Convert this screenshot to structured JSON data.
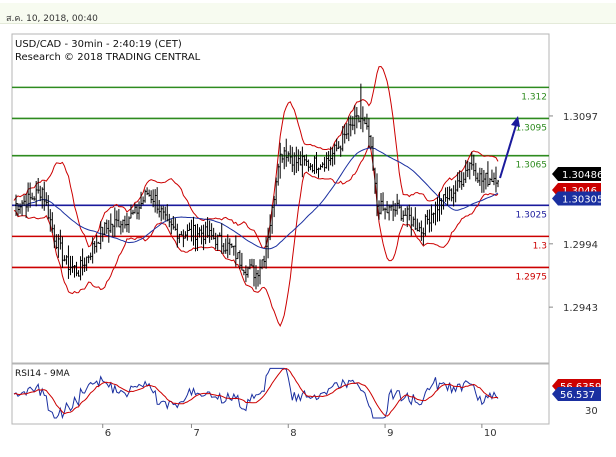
{
  "header": {
    "timestamp": "ส.ค. 10, 2018, 00:40"
  },
  "chart_data": {
    "type": "candlestick",
    "title": "USD/CAD - 30min - 2:40:19 (CET)",
    "subtitle": "Research © 2018 TRADING CENTRAL",
    "x_tick_labels": [
      "6",
      "7",
      "8",
      "9",
      "10"
    ],
    "y_tick_labels": [
      "1.3097",
      "1.2994",
      "1.2943"
    ],
    "y_range": [
      1.2898,
      1.3163
    ],
    "indicators": [
      "Bollinger Bands",
      "Moving Average"
    ],
    "levels": [
      {
        "label": "1.312",
        "value": 1.312,
        "color": "#2e8b1f"
      },
      {
        "label": "1.3095",
        "value": 1.3095,
        "color": "#2e8b1f"
      },
      {
        "label": "1.3065",
        "value": 1.3065,
        "color": "#2e8b1f"
      },
      {
        "label": "1.3025",
        "value": 1.3025,
        "color": "#1a1a9c"
      },
      {
        "label": "1.3",
        "value": 1.3,
        "color": "#cc0000"
      },
      {
        "label": "1.2975",
        "value": 1.2975,
        "color": "#cc0000"
      }
    ],
    "price_badges": [
      {
        "label": "1.30486",
        "value": 1.30486,
        "bg": "#000000",
        "fg": "#ffffff"
      },
      {
        "label": "1.3046",
        "value": 1.3046,
        "bg": "#cc0000",
        "fg": "#ffffff"
      },
      {
        "label": "1.30305",
        "value": 1.30305,
        "bg": "#1a2fa0",
        "fg": "#ffffff"
      }
    ],
    "forecast_arrow": {
      "from": 1.3047,
      "to": 1.3097,
      "color": "#1a1a9c"
    },
    "rsi": {
      "label": "RSI14 - 9MA",
      "y_tick_labels": [
        "30"
      ],
      "value_badges": [
        {
          "label": "56.6359",
          "bg": "#cc0000",
          "fg": "#ffffff"
        },
        {
          "label": "56.537",
          "bg": "#1a2fa0",
          "fg": "#ffffff"
        }
      ]
    },
    "colors": {
      "candles": "#000000",
      "bollinger": "#cc0000",
      "moving_average": "#1a2fa0",
      "axis": "#888888"
    }
  }
}
